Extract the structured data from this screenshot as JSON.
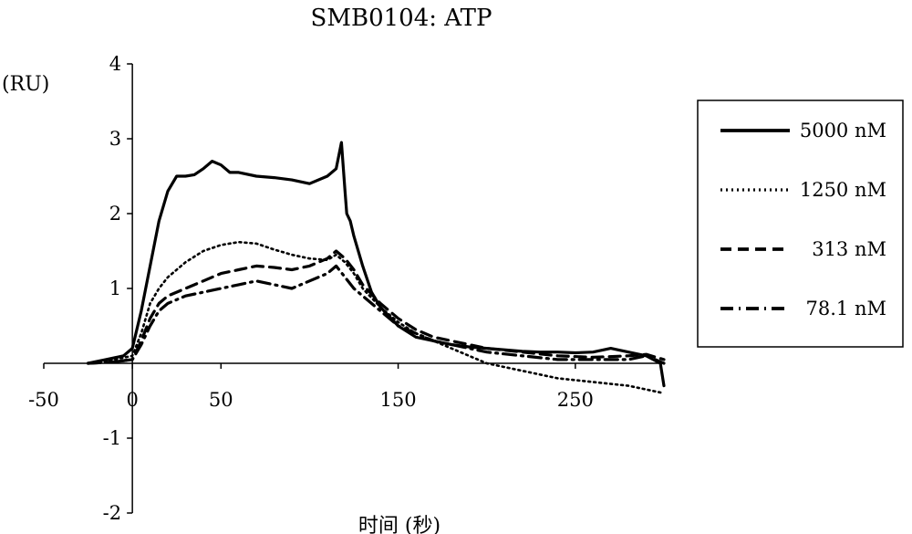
{
  "chart_data": {
    "type": "line",
    "title": "SMB0104: ATP",
    "ylabel": "(RU)",
    "xlabel": "时间 (秒)",
    "xlim": [
      -50,
      300
    ],
    "ylim": [
      -2,
      4
    ],
    "x_ticks": [
      -50,
      0,
      50,
      150,
      250
    ],
    "x_tick_labels": [
      "-50",
      "0",
      "50",
      "150",
      "250"
    ],
    "y_ticks": [
      -2,
      -1,
      1,
      2,
      3,
      4
    ],
    "y_tick_labels": [
      "-2",
      "-1",
      "1",
      "2",
      "3",
      "4"
    ],
    "grid": false,
    "legend_position": "right",
    "series": [
      {
        "name": "5000 nM",
        "style": "solid",
        "x": [
          -25,
          -15,
          -5,
          0,
          5,
          10,
          15,
          20,
          25,
          30,
          35,
          40,
          45,
          50,
          55,
          60,
          70,
          80,
          90,
          100,
          110,
          115,
          118,
          120,
          121,
          123,
          125,
          130,
          135,
          140,
          150,
          160,
          170,
          180,
          190,
          200,
          210,
          220,
          230,
          240,
          250,
          260,
          270,
          280,
          290,
          298,
          300
        ],
        "y": [
          0,
          0.05,
          0.1,
          0.2,
          0.7,
          1.3,
          1.9,
          2.3,
          2.5,
          2.5,
          2.52,
          2.6,
          2.7,
          2.65,
          2.55,
          2.55,
          2.5,
          2.48,
          2.45,
          2.4,
          2.5,
          2.6,
          2.95,
          2.3,
          2.0,
          1.9,
          1.7,
          1.3,
          0.95,
          0.75,
          0.5,
          0.35,
          0.3,
          0.25,
          0.22,
          0.2,
          0.18,
          0.16,
          0.15,
          0.15,
          0.14,
          0.15,
          0.2,
          0.15,
          0.1,
          0,
          -0.3
        ]
      },
      {
        "name": "1250 nM",
        "style": "dotted",
        "x": [
          -25,
          -10,
          0,
          5,
          10,
          15,
          20,
          30,
          40,
          50,
          60,
          70,
          80,
          90,
          100,
          110,
          115,
          120,
          125,
          130,
          140,
          150,
          160,
          170,
          180,
          190,
          200,
          220,
          240,
          260,
          280,
          290,
          300
        ],
        "y": [
          0,
          0.05,
          0.1,
          0.4,
          0.8,
          1.0,
          1.15,
          1.35,
          1.5,
          1.58,
          1.62,
          1.6,
          1.52,
          1.45,
          1.4,
          1.38,
          1.45,
          1.35,
          1.2,
          1.0,
          0.75,
          0.55,
          0.4,
          0.3,
          0.2,
          0.1,
          0,
          -0.1,
          -0.2,
          -0.25,
          -0.3,
          -0.35,
          -0.4
        ]
      },
      {
        "name": "313 nM",
        "style": "dashed",
        "x": [
          -25,
          -10,
          0,
          5,
          10,
          15,
          20,
          30,
          40,
          50,
          60,
          70,
          80,
          90,
          100,
          110,
          115,
          120,
          125,
          130,
          140,
          150,
          160,
          170,
          180,
          190,
          200,
          220,
          240,
          260,
          280,
          290,
          300
        ],
        "y": [
          0,
          0.02,
          0.05,
          0.3,
          0.6,
          0.8,
          0.9,
          1.0,
          1.1,
          1.2,
          1.25,
          1.3,
          1.28,
          1.25,
          1.3,
          1.4,
          1.5,
          1.4,
          1.25,
          1.05,
          0.8,
          0.6,
          0.45,
          0.35,
          0.3,
          0.25,
          0.2,
          0.15,
          0.1,
          0.08,
          0.1,
          0.12,
          0.05
        ]
      },
      {
        "name": "78.1 nM",
        "style": "dashdot",
        "x": [
          -25,
          -10,
          0,
          5,
          10,
          15,
          20,
          30,
          40,
          50,
          60,
          70,
          80,
          90,
          100,
          110,
          115,
          120,
          125,
          130,
          140,
          150,
          160,
          170,
          180,
          190,
          200,
          220,
          240,
          260,
          280,
          290,
          300
        ],
        "y": [
          0,
          0.02,
          0.05,
          0.25,
          0.5,
          0.7,
          0.8,
          0.9,
          0.95,
          1.0,
          1.05,
          1.1,
          1.05,
          1.0,
          1.1,
          1.2,
          1.3,
          1.15,
          1.0,
          0.9,
          0.7,
          0.5,
          0.4,
          0.3,
          0.25,
          0.2,
          0.15,
          0.1,
          0.05,
          0.05,
          0.05,
          0.1,
          0
        ]
      }
    ]
  }
}
